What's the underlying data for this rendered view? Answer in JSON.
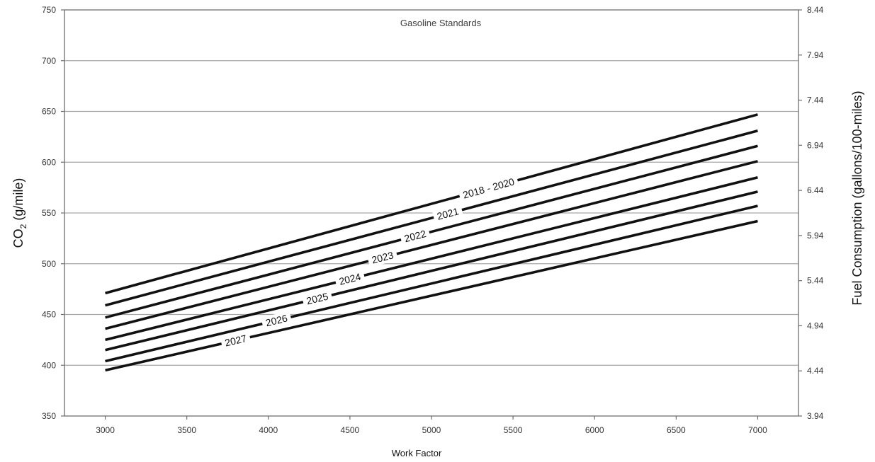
{
  "chart_data": {
    "type": "line",
    "title": "Gasoline Standards",
    "xlabel": "Work Factor",
    "ylabel": "CO2 (g/mile)",
    "ylabel_main": "CO",
    "ylabel_sub": "2",
    "ylabel_rest": " (g/mile)",
    "y2label": "Fuel Consumption (gallons/100-miles)",
    "xlim": [
      2750,
      7250
    ],
    "ylim": [
      350,
      750
    ],
    "y2lim": [
      3.94,
      8.44
    ],
    "x_ticks": [
      3000,
      3500,
      4000,
      4500,
      5000,
      5500,
      6000,
      6500,
      7000
    ],
    "x_tick_labels": [
      "3000",
      "3500",
      "4000",
      "4500",
      "5000",
      "5500",
      "6000",
      "6500",
      "7000"
    ],
    "y_ticks": [
      350,
      400,
      450,
      500,
      550,
      600,
      650,
      700,
      750
    ],
    "y_tick_labels": [
      "350",
      "400",
      "450",
      "500",
      "550",
      "600",
      "650",
      "700",
      "750"
    ],
    "y2_ticks": [
      3.94,
      4.44,
      4.94,
      5.44,
      5.94,
      6.44,
      6.94,
      7.44,
      7.94,
      8.44
    ],
    "y2_tick_labels": [
      "3.94",
      "4.44",
      "4.94",
      "5.44",
      "5.94",
      "6.44",
      "6.94",
      "7.44",
      "7.94",
      "8.44"
    ],
    "grid": "horizontal",
    "line_color": "#111111",
    "grid_color": "#a6a6a6",
    "series": [
      {
        "name": "2018 - 2020",
        "x": [
          3000,
          7000
        ],
        "values": [
          471,
          647
        ],
        "label_x": 5350
      },
      {
        "name": "2021",
        "x": [
          3000,
          7000
        ],
        "values": [
          459,
          631
        ],
        "label_x": 5100
      },
      {
        "name": "2022",
        "x": [
          3000,
          7000
        ],
        "values": [
          447,
          616
        ],
        "label_x": 4900
      },
      {
        "name": "2023",
        "x": [
          3000,
          7000
        ],
        "values": [
          436,
          601
        ],
        "label_x": 4700
      },
      {
        "name": "2024",
        "x": [
          3000,
          7000
        ],
        "values": [
          425,
          585
        ],
        "label_x": 4500
      },
      {
        "name": "2025",
        "x": [
          3000,
          7000
        ],
        "values": [
          415,
          571
        ],
        "label_x": 4300
      },
      {
        "name": "2026",
        "x": [
          3000,
          7000
        ],
        "values": [
          404,
          557
        ],
        "label_x": 4050
      },
      {
        "name": "2027",
        "x": [
          3000,
          7000
        ],
        "values": [
          395,
          542
        ],
        "label_x": 3800
      }
    ]
  }
}
